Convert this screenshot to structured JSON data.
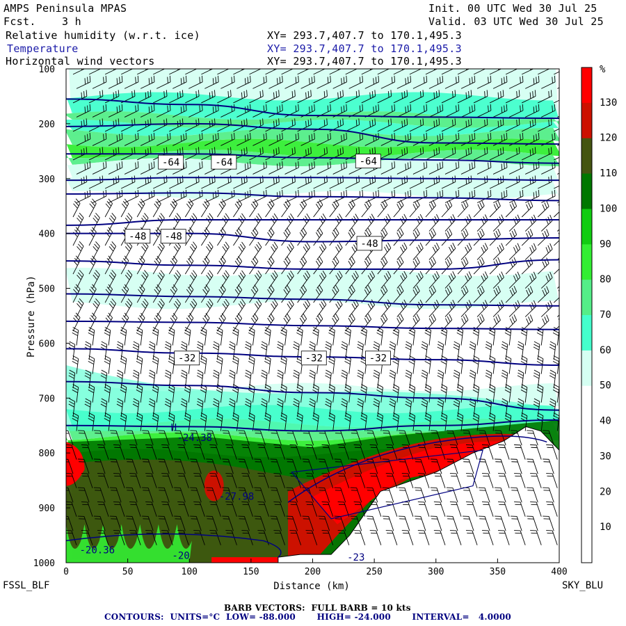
{
  "header": {
    "model": "AMPS Peninsula MPAS",
    "fcst_label": "Fcst.",
    "fcst_value": "3 h",
    "init": "Init. 00 UTC Wed 30 Jul 25",
    "valid": "Valid. 03 UTC Wed 30 Jul 25"
  },
  "fields": [
    {
      "name": "Relative humidity (w.r.t. ice)",
      "xy": "XY= 293.7,407.7 to 170.1,495.3"
    },
    {
      "name": "Temperature",
      "xy": "XY= 293.7,407.7 to 170.1,495.3"
    },
    {
      "name": "Horizontal wind vectors",
      "xy": "XY= 293.7,407.7 to 170.1,495.3"
    }
  ],
  "colors": {
    "rh": [
      "#ffffff",
      "#ffffff",
      "#ffffff",
      "#d5fff2",
      "#44ffcc",
      "#55ee88",
      "#33ee33",
      "#11cc11",
      "#007700",
      "#445511",
      "#cc1100",
      "#ff0000"
    ],
    "contour": "#000080",
    "field_blue": "#1a1aa8"
  },
  "chart_data": {
    "type": "contour",
    "xlabel": "Distance (km)",
    "ylabel": "Pressure (hPa)",
    "x_ticks": [
      0,
      50,
      100,
      150,
      200,
      250,
      300,
      350,
      400
    ],
    "y_ticks": [
      100,
      200,
      300,
      400,
      500,
      600,
      700,
      800,
      900,
      1000
    ],
    "xlim": [
      0,
      400
    ],
    "ylim": [
      100,
      1000
    ],
    "left_station": "FSSL_BLF",
    "right_station": "SKY_BLU",
    "colorbar_unit": "%",
    "colorbar_ticks": [
      10,
      20,
      30,
      40,
      50,
      60,
      70,
      80,
      90,
      100,
      110,
      120,
      130
    ],
    "isotherms": [
      {
        "T": -64,
        "points": [
          [
            0,
            255
          ],
          [
            100,
            255
          ],
          [
            200,
            262
          ],
          [
            300,
            266
          ],
          [
            400,
            272
          ]
        ]
      },
      {
        "T": -68,
        "points": [
          [
            0,
            205
          ],
          [
            100,
            200
          ],
          [
            200,
            210
          ],
          [
            300,
            235
          ],
          [
            400,
            237
          ]
        ]
      },
      {
        "T": -72,
        "points": [
          [
            0,
            155
          ],
          [
            100,
            165
          ],
          [
            200,
            185
          ],
          [
            300,
            188
          ],
          [
            400,
            190
          ]
        ]
      },
      {
        "T": -60,
        "points": [
          [
            0,
            303
          ],
          [
            100,
            298
          ],
          [
            200,
            298
          ],
          [
            300,
            300
          ],
          [
            400,
            303
          ]
        ]
      },
      {
        "T": -56,
        "points": [
          [
            0,
            328
          ],
          [
            100,
            326
          ],
          [
            200,
            333
          ],
          [
            300,
            335
          ],
          [
            400,
            340
          ]
        ]
      },
      {
        "T": -52,
        "points": [
          [
            0,
            385
          ],
          [
            100,
            375
          ],
          [
            200,
            375
          ],
          [
            300,
            375
          ],
          [
            400,
            375
          ]
        ]
      },
      {
        "T": -48,
        "points": [
          [
            0,
            400
          ],
          [
            100,
            400
          ],
          [
            200,
            415
          ],
          [
            300,
            412
          ],
          [
            400,
            408
          ]
        ]
      },
      {
        "T": -44,
        "points": [
          [
            0,
            450
          ],
          [
            100,
            458
          ],
          [
            200,
            465
          ],
          [
            300,
            465
          ],
          [
            400,
            448
          ]
        ]
      },
      {
        "T": -40,
        "points": [
          [
            0,
            510
          ],
          [
            100,
            515
          ],
          [
            200,
            520
          ],
          [
            300,
            530
          ],
          [
            400,
            532
          ]
        ]
      },
      {
        "T": -36,
        "points": [
          [
            0,
            560
          ],
          [
            100,
            562
          ],
          [
            200,
            568
          ],
          [
            300,
            573
          ],
          [
            400,
            575
          ]
        ]
      },
      {
        "T": -32,
        "points": [
          [
            0,
            610
          ],
          [
            100,
            618
          ],
          [
            200,
            625
          ],
          [
            300,
            630
          ],
          [
            400,
            640
          ]
        ]
      },
      {
        "T": -28,
        "points": [
          [
            0,
            670
          ],
          [
            100,
            677
          ],
          [
            200,
            690
          ],
          [
            300,
            700
          ],
          [
            400,
            722
          ]
        ]
      },
      {
        "T": -24,
        "points": [
          [
            0,
            750
          ],
          [
            100,
            752
          ],
          [
            200,
            760
          ],
          [
            300,
            750
          ],
          [
            400,
            740
          ]
        ]
      }
    ],
    "contour_labels": [
      {
        "text": "-64",
        "x": 85,
        "p": 270
      },
      {
        "text": "-64",
        "x": 128,
        "p": 270
      },
      {
        "text": "-64",
        "x": 245,
        "p": 268
      },
      {
        "text": "-48",
        "x": 58,
        "p": 405
      },
      {
        "text": "-48",
        "x": 87,
        "p": 405
      },
      {
        "text": "-48",
        "x": 246,
        "p": 418
      },
      {
        "text": "-32",
        "x": 98,
        "p": 627
      },
      {
        "text": "-32",
        "x": 201,
        "p": 627
      },
      {
        "text": "-32",
        "x": 253,
        "p": 627
      }
    ],
    "annotations": [
      {
        "text": "H",
        "x": 85,
        "p": 760
      },
      {
        "text": "-24.38",
        "x": 90,
        "p": 778
      },
      {
        "text": "-27.98",
        "x": 124,
        "p": 885
      },
      {
        "text": "-20.36",
        "x": 11,
        "p": 983
      },
      {
        "text": "-20",
        "x": 86,
        "p": 993
      },
      {
        "text": "-23",
        "x": 228,
        "p": 996
      }
    ],
    "terrain": [
      [
        172,
        990
      ],
      [
        190,
        985
      ],
      [
        215,
        985
      ],
      [
        230,
        950
      ],
      [
        255,
        870
      ],
      [
        300,
        835
      ],
      [
        330,
        800
      ],
      [
        355,
        778
      ],
      [
        373,
        752
      ],
      [
        385,
        760
      ],
      [
        400,
        795
      ]
    ]
  },
  "footer": {
    "barb_vectors": "BARB VECTORS:  FULL BARB = 10 kts",
    "contours": "CONTOURS:  UNITS=°C  LOW= -88.000       HIGH= -24.000       INTERVAL=   4.0000"
  }
}
